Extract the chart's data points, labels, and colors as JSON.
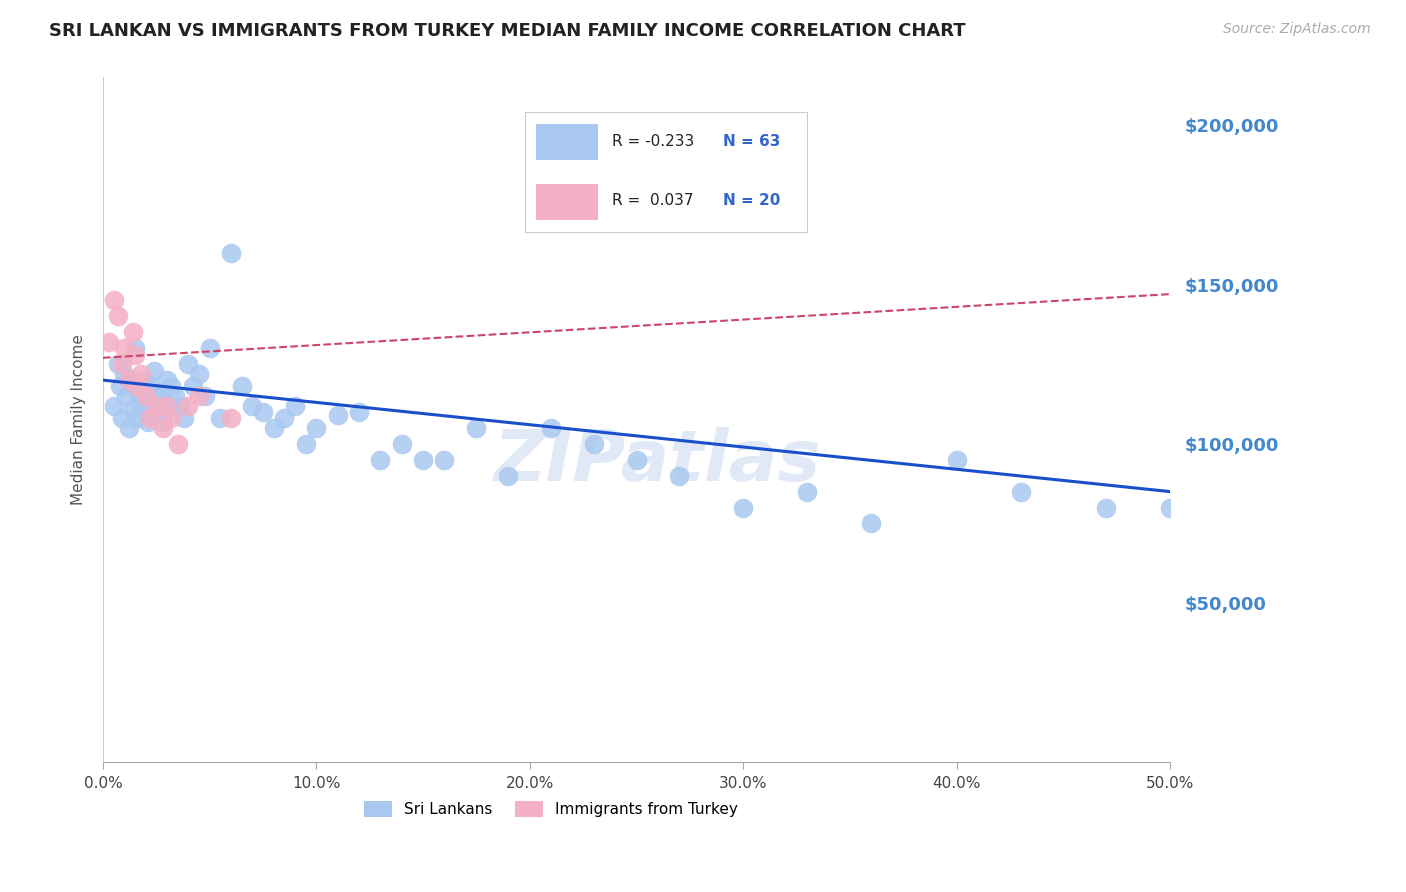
{
  "title": "SRI LANKAN VS IMMIGRANTS FROM TURKEY MEDIAN FAMILY INCOME CORRELATION CHART",
  "source_text": "Source: ZipAtlas.com",
  "ylabel": "Median Family Income",
  "xlim": [
    0.0,
    0.5
  ],
  "ylim": [
    0,
    215000
  ],
  "yticks": [
    0,
    50000,
    100000,
    150000,
    200000
  ],
  "ytick_labels": [
    "",
    "$50,000",
    "$100,000",
    "$150,000",
    "$200,000"
  ],
  "xticks": [
    0.0,
    0.1,
    0.2,
    0.3,
    0.4,
    0.5
  ],
  "xtick_labels": [
    "0.0%",
    "10.0%",
    "20.0%",
    "30.0%",
    "40.0%",
    "50.0%"
  ],
  "sri_lankan_color": "#a8c8f0",
  "turkey_color": "#f4b0c4",
  "sri_lankan_line_color": "#1a4fcc",
  "turkey_line_color": "#cc4466",
  "turkey_line_style": "--",
  "watermark": "ZIPatlas",
  "sri_lankans_x": [
    0.005,
    0.007,
    0.008,
    0.009,
    0.01,
    0.011,
    0.012,
    0.013,
    0.014,
    0.015,
    0.016,
    0.017,
    0.018,
    0.019,
    0.02,
    0.021,
    0.022,
    0.023,
    0.024,
    0.025,
    0.026,
    0.027,
    0.028,
    0.03,
    0.031,
    0.032,
    0.034,
    0.036,
    0.038,
    0.04,
    0.042,
    0.045,
    0.048,
    0.05,
    0.055,
    0.06,
    0.065,
    0.07,
    0.075,
    0.08,
    0.085,
    0.09,
    0.095,
    0.1,
    0.11,
    0.12,
    0.13,
    0.14,
    0.15,
    0.16,
    0.175,
    0.19,
    0.21,
    0.23,
    0.25,
    0.27,
    0.3,
    0.33,
    0.36,
    0.4,
    0.43,
    0.47,
    0.5
  ],
  "sri_lankans_y": [
    112000,
    125000,
    118000,
    108000,
    122000,
    115000,
    105000,
    119000,
    111000,
    130000,
    108000,
    116000,
    112000,
    120000,
    114000,
    107000,
    118000,
    109000,
    123000,
    116000,
    110000,
    114000,
    107000,
    120000,
    112000,
    118000,
    115000,
    112000,
    108000,
    125000,
    118000,
    122000,
    115000,
    130000,
    108000,
    160000,
    118000,
    112000,
    110000,
    105000,
    108000,
    112000,
    100000,
    105000,
    109000,
    110000,
    95000,
    100000,
    95000,
    95000,
    105000,
    90000,
    105000,
    100000,
    95000,
    90000,
    80000,
    85000,
    75000,
    95000,
    85000,
    80000,
    80000
  ],
  "turkey_x": [
    0.003,
    0.005,
    0.007,
    0.009,
    0.01,
    0.012,
    0.014,
    0.015,
    0.016,
    0.018,
    0.02,
    0.022,
    0.025,
    0.028,
    0.03,
    0.032,
    0.035,
    0.04,
    0.045,
    0.06
  ],
  "turkey_y": [
    132000,
    145000,
    140000,
    125000,
    130000,
    120000,
    135000,
    128000,
    118000,
    122000,
    115000,
    108000,
    112000,
    105000,
    112000,
    108000,
    100000,
    112000,
    115000,
    108000
  ],
  "sri_lankan_trendline": [
    0.0,
    0.5,
    120000,
    85000
  ],
  "turkey_trendline": [
    0.0,
    0.5,
    127000,
    147000
  ]
}
